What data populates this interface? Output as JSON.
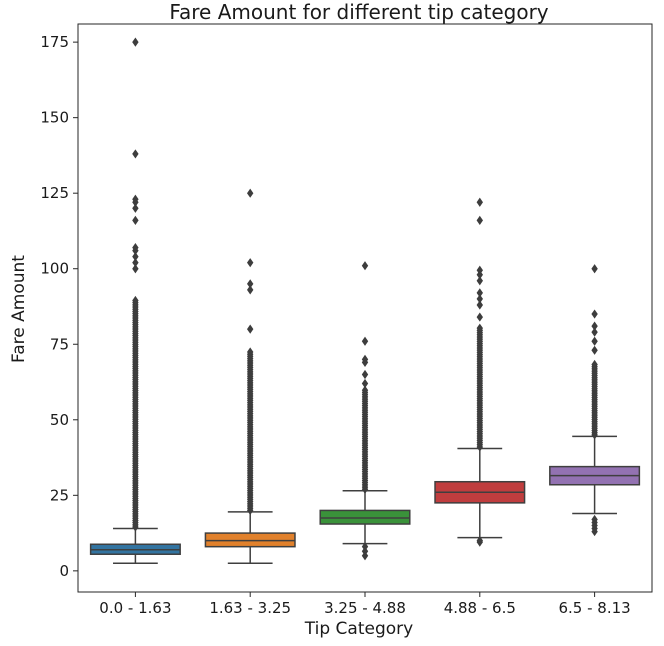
{
  "chart_data": {
    "type": "box",
    "title": "Fare Amount for different tip category",
    "xlabel": "Tip Category",
    "ylabel": "Fare Amount",
    "ylim": [
      -7,
      181
    ],
    "yticks": [
      0,
      25,
      50,
      75,
      100,
      125,
      150,
      175
    ],
    "grid": false,
    "categories": [
      "0.0 - 1.63",
      "1.63 - 3.25",
      "3.25 - 4.88",
      "4.88 - 6.5",
      "6.5 - 8.13"
    ],
    "series": [
      {
        "category": "0.0 - 1.63",
        "color": "#3274a1",
        "whisker_low": 2.5,
        "q1": 5.5,
        "median": 7.0,
        "q3": 8.8,
        "whisker_high": 14.0,
        "outliers_dense_range": [
          14.5,
          90
        ],
        "outliers_sparse": [
          100,
          102,
          104,
          106,
          107,
          116,
          120,
          122,
          123,
          138,
          175
        ]
      },
      {
        "category": "1.63 - 3.25",
        "color": "#e1812c",
        "whisker_low": 2.5,
        "q1": 8.0,
        "median": 10.0,
        "q3": 12.5,
        "whisker_high": 19.5,
        "outliers_dense_range": [
          20,
          73
        ],
        "outliers_sparse": [
          80,
          93,
          95,
          102,
          125
        ]
      },
      {
        "category": "3.25 - 4.88",
        "color": "#3a923a",
        "whisker_low": 9.0,
        "q1": 15.5,
        "median": 17.5,
        "q3": 20.0,
        "whisker_high": 26.5,
        "outliers_low": [
          5.0,
          6.5,
          8.0
        ],
        "outliers_dense_range": [
          27,
          60
        ],
        "outliers_sparse": [
          62,
          65,
          69,
          70,
          76,
          101
        ]
      },
      {
        "category": "4.88 - 6.5",
        "color": "#c03d3e",
        "whisker_low": 11.0,
        "q1": 22.5,
        "median": 26.0,
        "q3": 29.5,
        "whisker_high": 40.5,
        "outliers_low": [
          9.5,
          10.0
        ],
        "outliers_dense_range": [
          41,
          81
        ],
        "outliers_sparse": [
          84,
          88,
          90,
          92,
          96,
          98,
          99.5,
          116,
          122
        ]
      },
      {
        "category": "6.5 - 8.13",
        "color": "#9372b2",
        "whisker_low": 19.0,
        "q1": 28.5,
        "median": 31.5,
        "q3": 34.5,
        "whisker_high": 44.5,
        "outliers_low": [
          13,
          14,
          15,
          16,
          17
        ],
        "outliers_dense_range": [
          45,
          69
        ],
        "outliers_sparse": [
          73,
          76,
          79,
          81,
          85,
          100
        ]
      }
    ]
  }
}
